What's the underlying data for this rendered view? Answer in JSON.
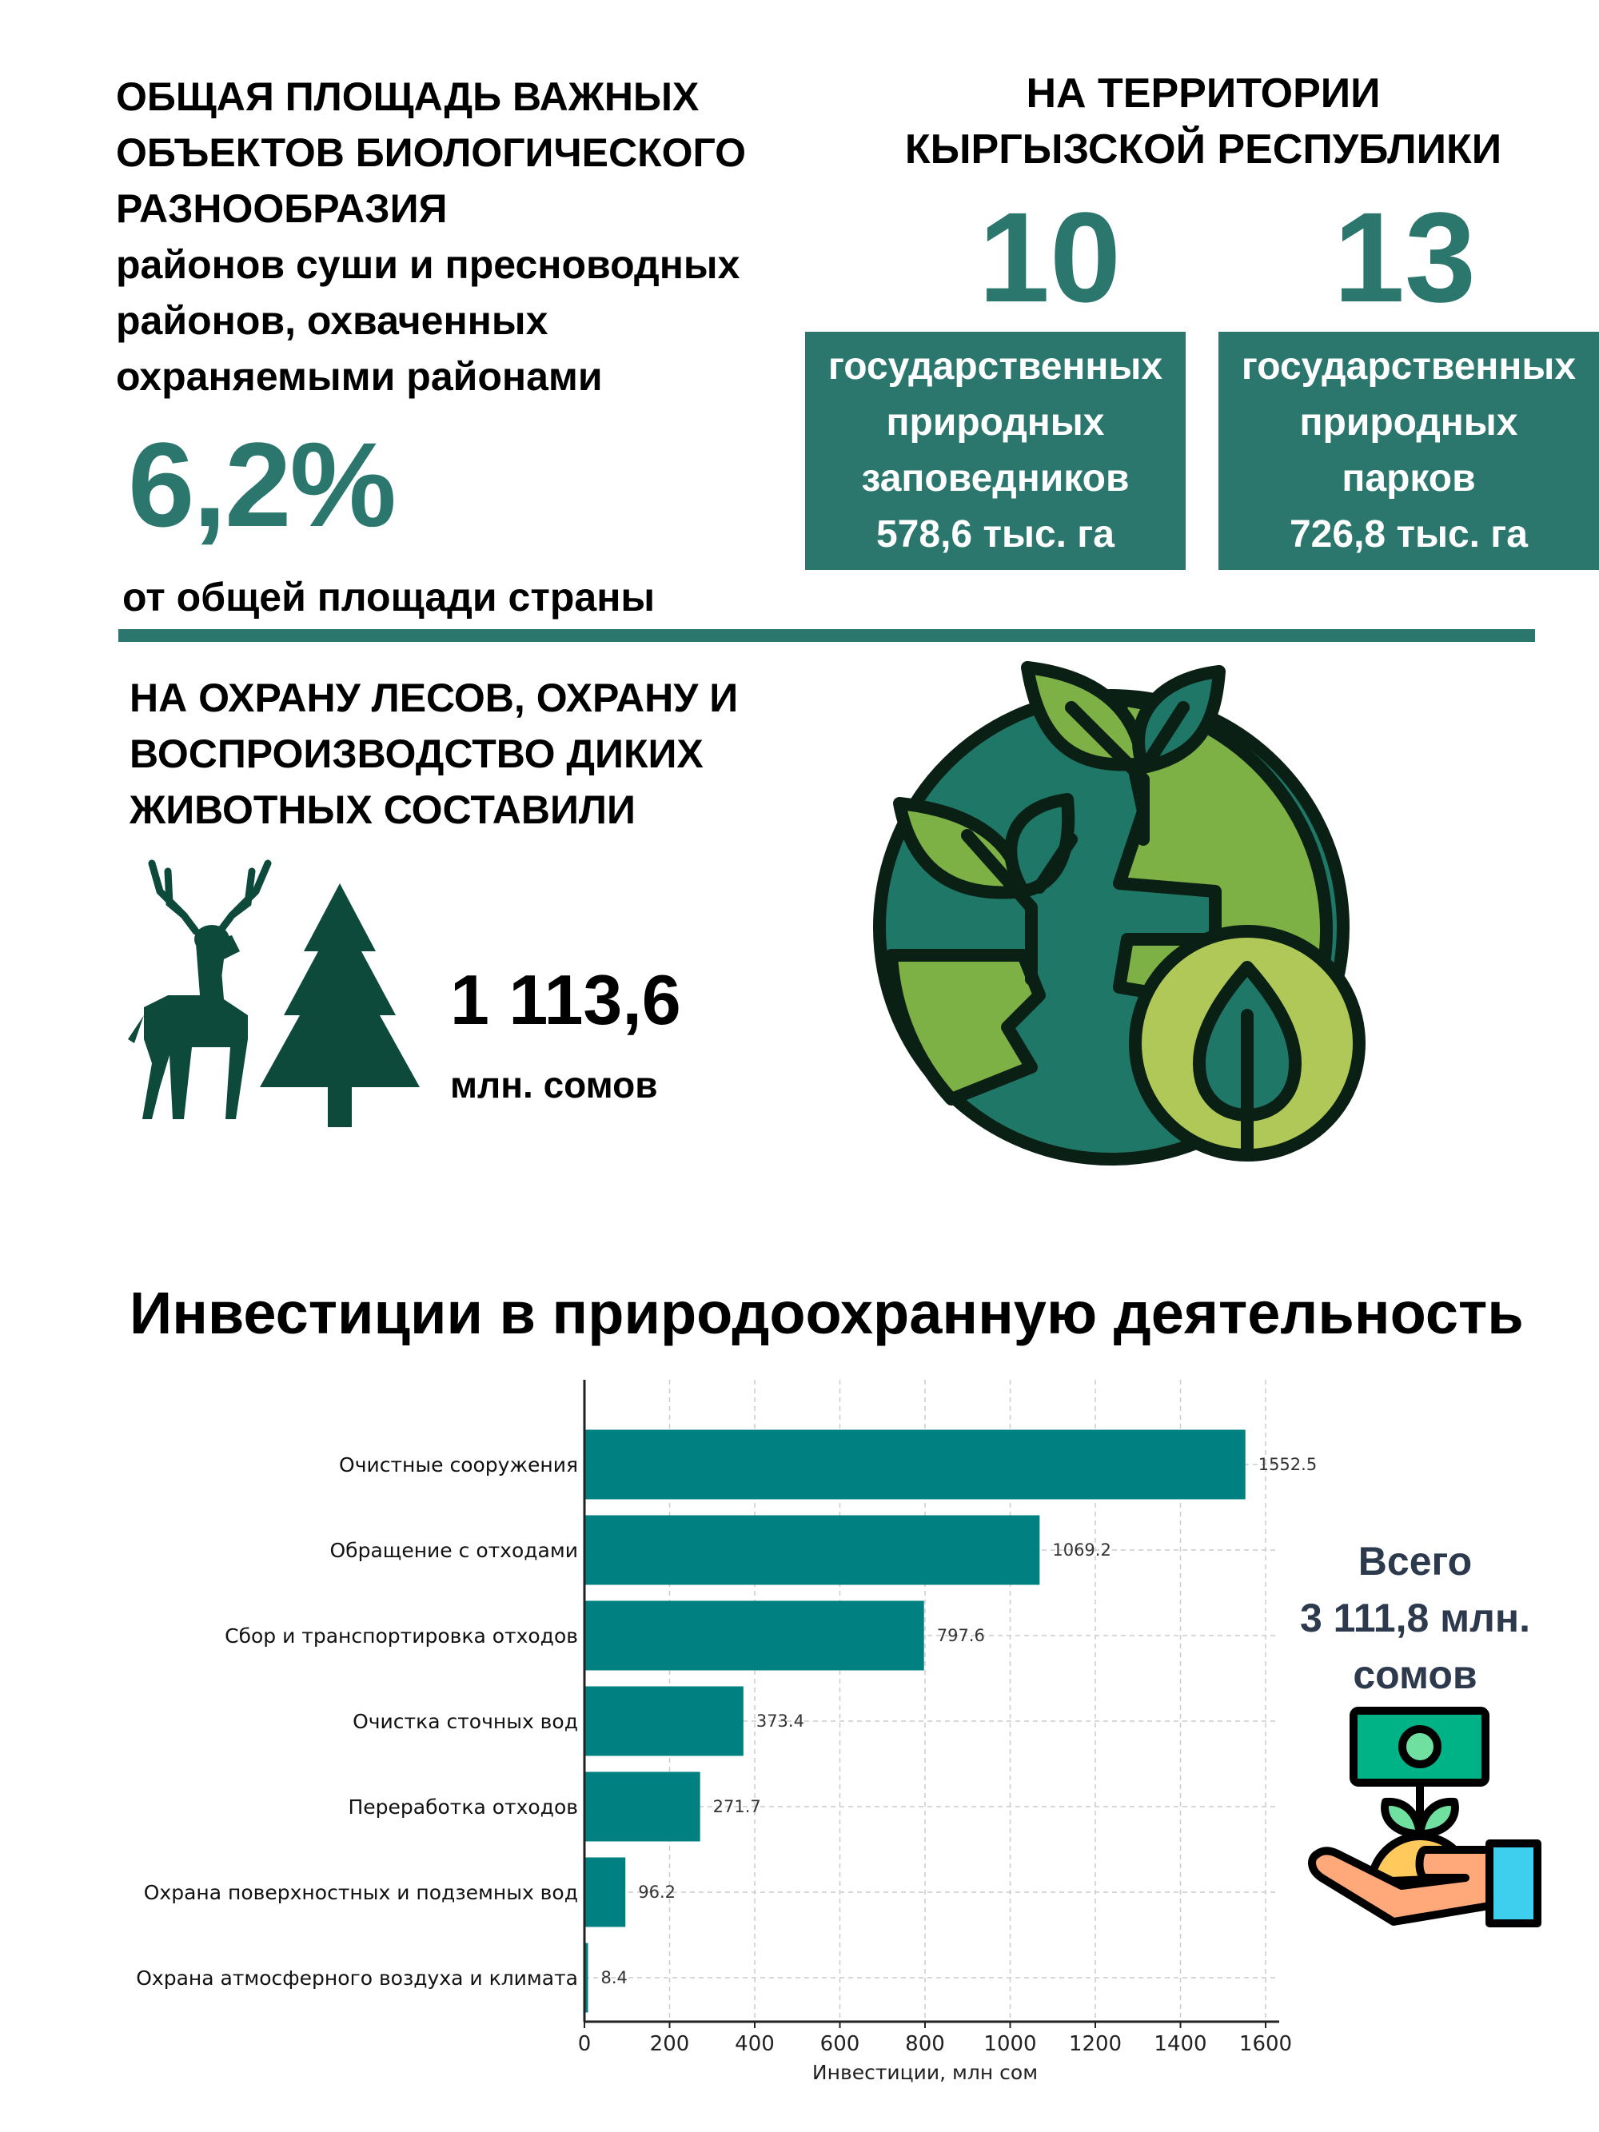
{
  "area_block": {
    "heading_lines": [
      "ОБЩАЯ ПЛОЩАДЬ ВАЖНЫХ",
      "ОБЪЕКТОВ БИОЛОГИЧЕСКОГО",
      "РАЗНООБРАЗИЯ"
    ],
    "sub_lines": [
      "районов суши и пресноводных",
      "районов, охваченных",
      "охраняемыми районами"
    ],
    "percent": "6,2%",
    "percent_caption": "от общей площади страны"
  },
  "territory_block": {
    "heading_lines": [
      "НА ТЕРРИТОРИИ",
      "КЫРГЫЗСКОЙ РЕСПУБЛИКИ"
    ],
    "items": [
      {
        "count": "10",
        "lines": [
          "государственных",
          "природных",
          "заповедников",
          "578,6 тыс. га"
        ]
      },
      {
        "count": "13",
        "lines": [
          "государственных",
          "природных",
          "парков",
          "726,8 тыс. га"
        ]
      }
    ]
  },
  "forest_block": {
    "heading_lines": [
      "НА ОХРАНУ ЛЕСОВ, ОХРАНУ И",
      "ВОСПРОИЗВОДСТВО ДИКИХ",
      "ЖИВОТНЫХ СОСТАВИЛИ"
    ],
    "amount": "1 113,6",
    "unit": "млн. сомов",
    "icons": [
      "deer-icon",
      "fir-tree-icon",
      "globe-plants-icon"
    ]
  },
  "investments": {
    "title": "Инвестиции в природоохранную деятельность",
    "total_lines": [
      "Всего",
      "3 111,8 млн.",
      "сомов"
    ],
    "icon": "money-plant-hand-icon"
  },
  "colors": {
    "teal": "#2b776d",
    "bar": "#008080",
    "dark_green": "#0e4a3c"
  },
  "chart_data": {
    "type": "bar",
    "orientation": "horizontal",
    "categories": [
      "Очистные сооружения",
      "Обращение с отходами",
      "Сбор и транспортировка отходов",
      "Очистка сточных вод",
      "Переработка отходов",
      "Охрана поверхностных и подземных вод",
      "Охрана атмосферного воздуха и климата"
    ],
    "values": [
      1552.5,
      1069.2,
      797.6,
      373.4,
      271.7,
      96.2,
      8.4
    ],
    "value_labels": [
      "1552.5",
      "1069.2",
      "797.6",
      "373.4",
      "271.7",
      "96.2",
      "8.4"
    ],
    "xlabel": "Инвестиции, млн сом",
    "ylabel": "",
    "xlim": [
      0,
      1600
    ],
    "xticks": [
      "0",
      "200",
      "400",
      "600",
      "800",
      "1000",
      "1200",
      "1400",
      "1600"
    ],
    "grid": true
  }
}
